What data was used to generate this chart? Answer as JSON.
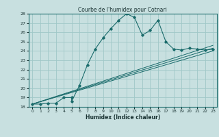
{
  "title": "Courbe de l'humidex pour Cotnari",
  "xlabel": "Humidex (Indice chaleur)",
  "xlim": [
    -0.5,
    23.5
  ],
  "ylim": [
    18,
    28
  ],
  "yticks": [
    18,
    19,
    20,
    21,
    22,
    23,
    24,
    25,
    26,
    27,
    28
  ],
  "xticks": [
    0,
    1,
    2,
    3,
    4,
    5,
    6,
    7,
    8,
    9,
    10,
    11,
    12,
    13,
    14,
    15,
    16,
    17,
    18,
    19,
    20,
    21,
    22,
    23
  ],
  "line_color": "#1a6b6b",
  "bg_color": "#c8e0e0",
  "grid_color": "#a0c8c8",
  "main_x": [
    0,
    1,
    2,
    3,
    4,
    5,
    5,
    6,
    7,
    8,
    9,
    10,
    11,
    12,
    13,
    14,
    15,
    16,
    17,
    18,
    19,
    20,
    21,
    22,
    23
  ],
  "main_y": [
    18.3,
    18.3,
    18.4,
    18.4,
    19.0,
    19.0,
    18.6,
    20.3,
    22.5,
    24.2,
    25.4,
    26.4,
    27.3,
    28.0,
    27.6,
    25.7,
    26.2,
    27.3,
    25.0,
    24.2,
    24.1,
    24.3,
    24.2,
    24.1,
    24.2
  ],
  "line1_x": [
    0,
    23
  ],
  "line1_y": [
    18.3,
    24.0
  ],
  "line2_x": [
    0,
    23
  ],
  "line2_y": [
    18.3,
    24.3
  ],
  "line3_x": [
    0,
    23
  ],
  "line3_y": [
    18.3,
    24.6
  ]
}
